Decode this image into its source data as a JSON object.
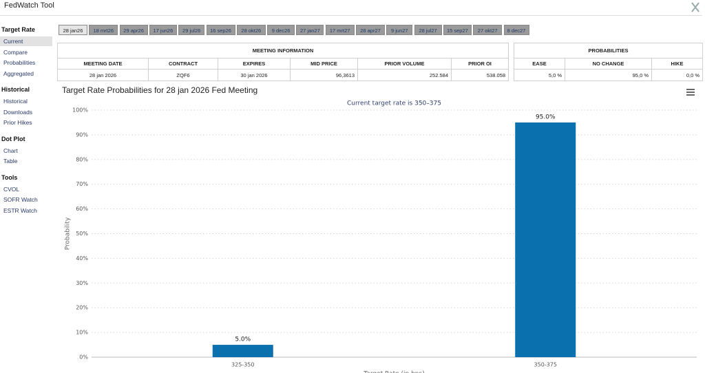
{
  "header": {
    "title": "FedWatch Tool"
  },
  "sidebar": [
    {
      "heading": "Target Rate",
      "items": [
        "Current",
        "Compare",
        "Probabilities",
        "Aggregated"
      ]
    },
    {
      "heading": "Historical",
      "items": [
        "Historical",
        "Downloads",
        "Prior Hikes"
      ]
    },
    {
      "heading": "Dot Plot",
      "items": [
        "Chart",
        "Table"
      ]
    },
    {
      "heading": "Tools",
      "items": [
        "CVOL",
        "SOFR Watch",
        "ESTR Watch"
      ]
    }
  ],
  "tabs": [
    "28 jan26",
    "18 mrt26",
    "29 apr26",
    "17 jun26",
    "29 jul26",
    "16 sep26",
    "28 okt26",
    "9 dec26",
    "27 jan27",
    "17 mrt27",
    "28 apr27",
    "9 jun27",
    "28 jul27",
    "15 sep27",
    "27 okt27",
    "8 dec27"
  ],
  "meeting_table": {
    "title": "MEETING INFORMATION",
    "columns": [
      "MEETING DATE",
      "CONTRACT",
      "EXPIRES",
      "MID PRICE",
      "PRIOR VOLUME",
      "PRIOR OI"
    ],
    "rows": [
      [
        "28 jan 2026",
        "ZQF6",
        "30 jan 2026",
        "96,3613",
        "252.584",
        "538.058"
      ]
    ]
  },
  "probabilities_table": {
    "title": "PROBABILITIES",
    "columns": [
      "EASE",
      "NO CHANGE",
      "HIKE"
    ],
    "rows": [
      [
        "5,0 %",
        "95,0 %",
        "0,0 %"
      ]
    ]
  },
  "chart_data": {
    "type": "bar",
    "title": "Target Rate Probabilities for 28 jan 2026 Fed Meeting",
    "subtitle": "Current target rate is 350–375",
    "y_label": "Probability",
    "x_label": "Target Rate (in bps)",
    "categories": [
      "325-350",
      "350-375"
    ],
    "values": [
      5.0,
      95.0
    ],
    "value_labels": [
      "5.0%",
      "95.0%"
    ],
    "color": "#0a70ae",
    "ylim": [
      0,
      100
    ],
    "yticks": [
      {
        "value": 0,
        "label": "0%"
      },
      {
        "value": 10,
        "label": "10%"
      },
      {
        "value": 20,
        "label": "20%"
      },
      {
        "value": 30,
        "label": "30%"
      },
      {
        "value": 40,
        "label": "40%"
      },
      {
        "value": 50,
        "label": "50%"
      },
      {
        "value": 60,
        "label": "60%"
      },
      {
        "value": 70,
        "label": "70%"
      },
      {
        "value": 80,
        "label": "80%"
      },
      {
        "value": 90,
        "label": "90%"
      },
      {
        "value": 100,
        "label": "100%"
      }
    ],
    "grid": true
  }
}
